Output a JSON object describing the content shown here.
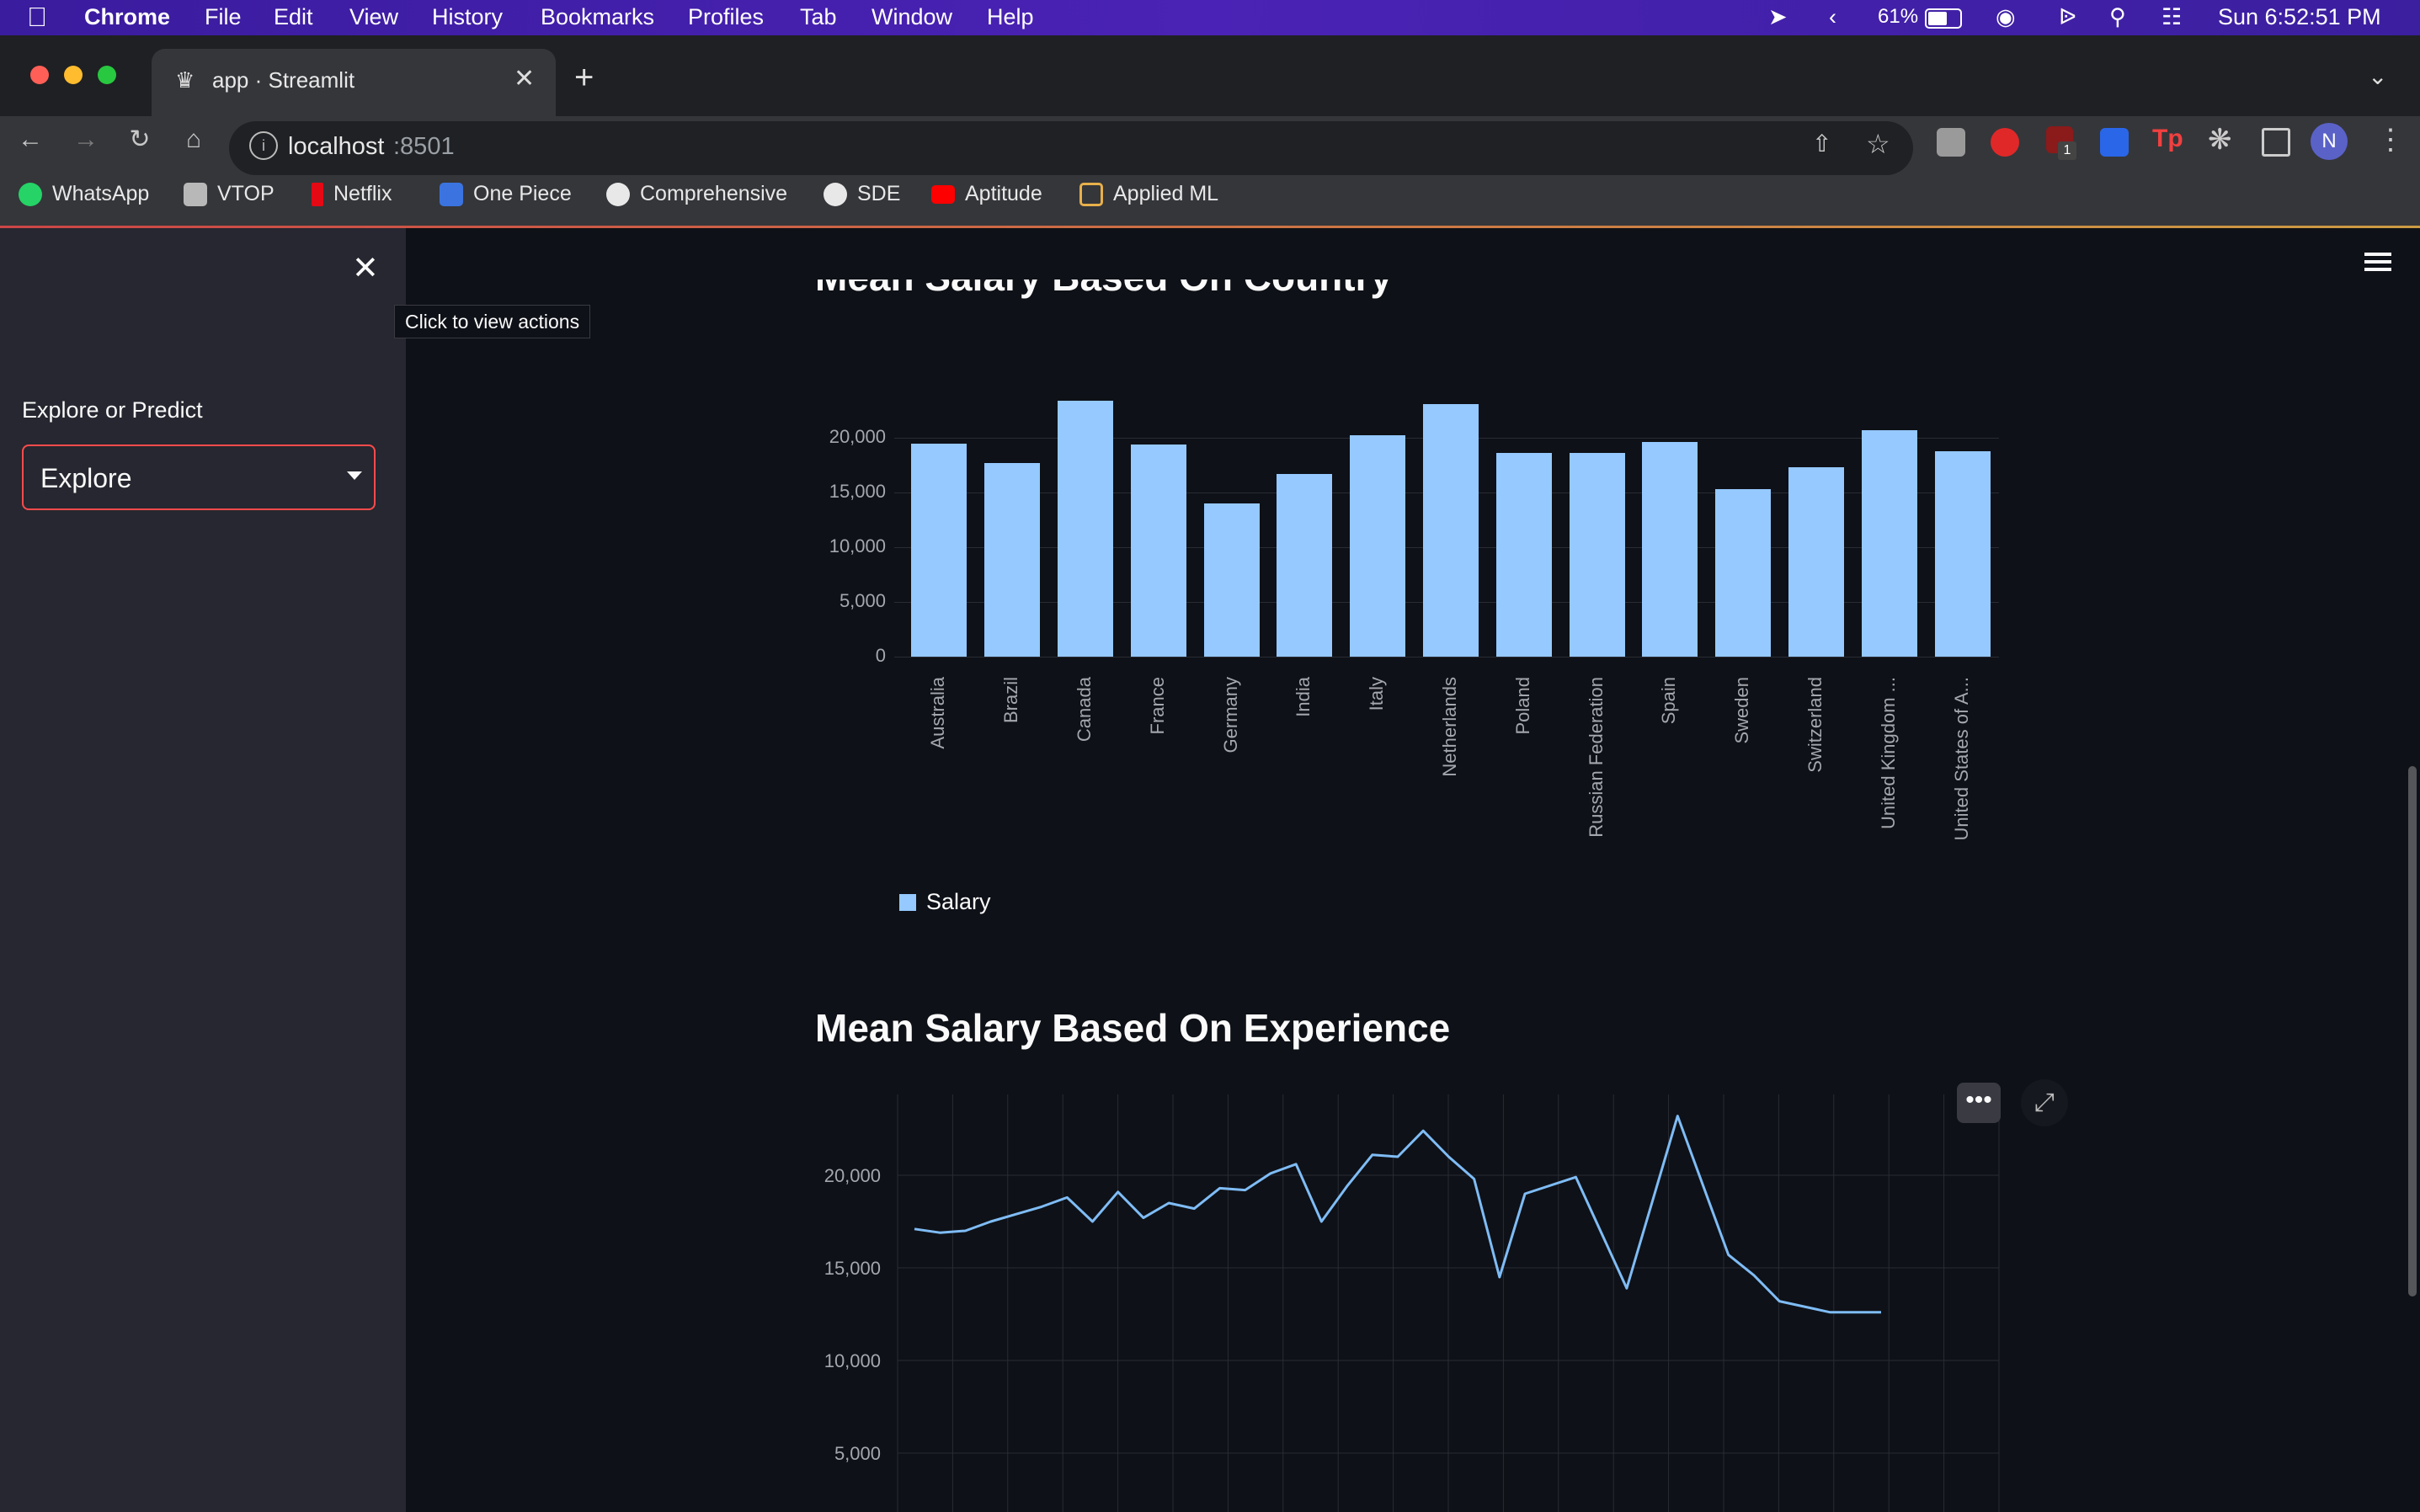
{
  "menubar": {
    "app": "Chrome",
    "items": [
      "File",
      "Edit",
      "View",
      "History",
      "Bookmarks",
      "Profiles",
      "Tab",
      "Window",
      "Help"
    ],
    "battery": "61%",
    "clock": "Sun  6:52:51 PM"
  },
  "browser": {
    "tab_title": "app · Streamlit",
    "url_host": "localhost",
    "url_port": ":8501",
    "profile_initial": "N",
    "extension_badge": "1",
    "bookmarks": [
      "WhatsApp",
      "VTOP",
      "Netflix",
      "One Piece",
      "Comprehensive",
      "SDE",
      "Aptitude",
      "Applied ML"
    ]
  },
  "sidebar": {
    "tooltip": "Click to view actions",
    "select_label": "Explore or Predict",
    "select_value": "Explore"
  },
  "colors": {
    "accent": "#ff4b4b",
    "bar": "#95c9ff",
    "line": "#7fbcf5"
  },
  "charts": {
    "partial_title": "Mean Salary Based On Country",
    "second_title": "Mean Salary Based On Experience"
  },
  "chart_data": [
    {
      "type": "bar",
      "categories": [
        "Australia",
        "Brazil",
        "Canada",
        "France",
        "Germany",
        "India",
        "Italy",
        "Netherlands",
        "Poland",
        "Russian Federation",
        "Spain",
        "Sweden",
        "Switzerland",
        "United Kingdom ...",
        "United States of A..."
      ],
      "series": [
        {
          "name": "Salary",
          "values": [
            19500,
            17700,
            23400,
            19400,
            14000,
            16700,
            20200,
            23100,
            18600,
            18600,
            19600,
            15300,
            17300,
            20700,
            18800
          ]
        }
      ],
      "yticks": [
        "0",
        "5,000",
        "10,000",
        "15,000",
        "20,000"
      ],
      "ylim": [
        0,
        24000
      ],
      "legend": "bottom-left",
      "grid": true
    },
    {
      "type": "line",
      "x": [
        0,
        0.5,
        1,
        1.5,
        2,
        2.5,
        3,
        3.5,
        4,
        4.5,
        5,
        5.5,
        6,
        6.5,
        7,
        7.5,
        8,
        8.5,
        9,
        9.5,
        10,
        10.5,
        11,
        11.5,
        12,
        13,
        14,
        15,
        16,
        16.5,
        17,
        18,
        19
      ],
      "y": [
        17100,
        16900,
        17000,
        17500,
        17900,
        18300,
        18800,
        17500,
        19100,
        17700,
        18500,
        18200,
        19300,
        19200,
        20100,
        20600,
        17500,
        19400,
        21100,
        21000,
        22400,
        21000,
        19800,
        14500,
        19000,
        19900,
        13900,
        23200,
        15700,
        14600,
        13200,
        12600,
        12600
      ],
      "x_points": 33,
      "yticks": [
        "5,000",
        "10,000",
        "15,000",
        "20,000"
      ],
      "grid": true
    }
  ]
}
